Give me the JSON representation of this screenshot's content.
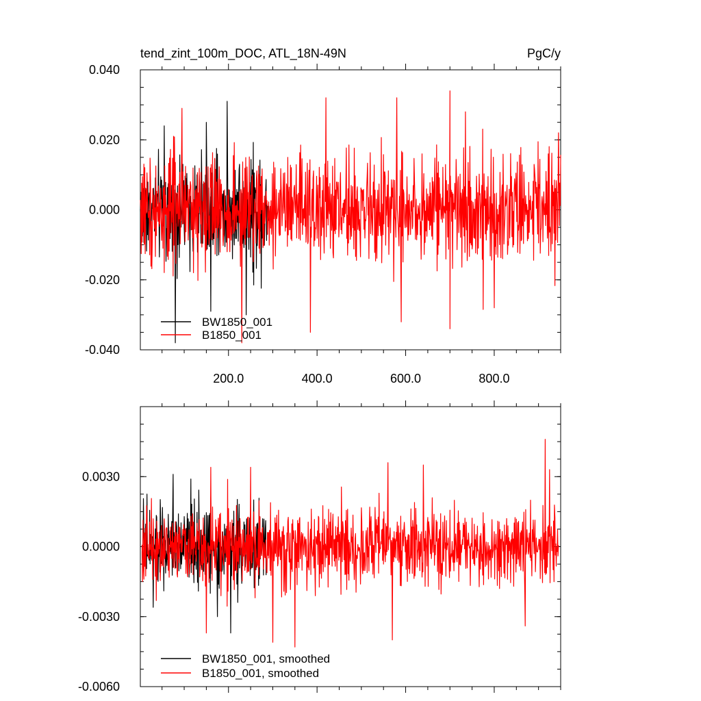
{
  "chart_data": [
    {
      "type": "line",
      "title": "tend_zint_100m_DOC, ATL_18N-49N",
      "units": "PgC/y",
      "xlabel": "",
      "ylabel": "",
      "xlim": [
        1,
        950
      ],
      "ylim": [
        -0.04,
        0.04
      ],
      "x_ticks": [
        200,
        400,
        600,
        800
      ],
      "x_tick_labels": [
        "200.0",
        "400.0",
        "600.0",
        "800.0"
      ],
      "y_ticks": [
        0.04,
        0.02,
        0.0,
        -0.02,
        -0.04
      ],
      "y_tick_labels": [
        "0.040",
        "0.020",
        "0.000",
        "-0.020",
        "-0.040"
      ],
      "grid": false,
      "legend_position": "bottom-left",
      "series": [
        {
          "name": "BW1850_001",
          "color": "#000000",
          "x_range": [
            1,
            290
          ],
          "amplitude": 0.012,
          "mean": 0.0,
          "spikes": [
            {
              "x": 80,
              "y": -0.038
            },
            {
              "x": 150,
              "y": 0.025
            },
            {
              "x": 160,
              "y": -0.029
            },
            {
              "x": 197,
              "y": 0.031
            },
            {
              "x": 225,
              "y": 0.013
            },
            {
              "x": 240,
              "y": -0.03
            },
            {
              "x": 55,
              "y": 0.024
            }
          ]
        },
        {
          "name": "B1850_001",
          "color": "#ff0000",
          "x_range": [
            1,
            950
          ],
          "amplitude": 0.013,
          "mean": 0.0,
          "spikes": [
            {
              "x": 95,
              "y": 0.029
            },
            {
              "x": 230,
              "y": -0.038
            },
            {
              "x": 385,
              "y": -0.035
            },
            {
              "x": 420,
              "y": 0.032
            },
            {
              "x": 580,
              "y": 0.032
            },
            {
              "x": 590,
              "y": -0.032
            },
            {
              "x": 700,
              "y": 0.034
            },
            {
              "x": 700,
              "y": -0.034
            },
            {
              "x": 735,
              "y": 0.028
            },
            {
              "x": 800,
              "y": -0.028
            },
            {
              "x": 945,
              "y": 0.022
            }
          ]
        }
      ]
    },
    {
      "type": "line",
      "title": "",
      "xlabel": "",
      "ylabel": "",
      "xlim": [
        1,
        950
      ],
      "ylim": [
        -0.006,
        0.006
      ],
      "x_ticks": [
        200,
        400,
        600,
        800
      ],
      "x_tick_labels": [],
      "y_ticks": [
        0.003,
        0.0,
        -0.003,
        -0.006
      ],
      "y_tick_labels": [
        "0.0030",
        "0.0000",
        "-0.0030",
        "-0.0060"
      ],
      "grid": false,
      "legend_position": "bottom-left",
      "series": [
        {
          "name": "BW1850_001, smoothed",
          "color": "#000000",
          "x_range": [
            5,
            285
          ],
          "amplitude": 0.0014,
          "mean": 0.0,
          "spikes": [
            {
              "x": 75,
              "y": 0.0031
            },
            {
              "x": 115,
              "y": 0.0029
            },
            {
              "x": 30,
              "y": -0.0026
            },
            {
              "x": 205,
              "y": -0.0037
            },
            {
              "x": 175,
              "y": -0.003
            }
          ]
        },
        {
          "name": "B1850_001, smoothed",
          "color": "#ff0000",
          "x_range": [
            5,
            945
          ],
          "amplitude": 0.0014,
          "mean": 0.0,
          "spikes": [
            {
              "x": 150,
              "y": -0.0037
            },
            {
              "x": 160,
              "y": 0.0034
            },
            {
              "x": 250,
              "y": 0.0034
            },
            {
              "x": 300,
              "y": -0.0041
            },
            {
              "x": 350,
              "y": -0.0043
            },
            {
              "x": 560,
              "y": 0.0036
            },
            {
              "x": 570,
              "y": -0.004
            },
            {
              "x": 640,
              "y": 0.0035
            },
            {
              "x": 870,
              "y": -0.0034
            },
            {
              "x": 915,
              "y": 0.0046
            },
            {
              "x": 925,
              "y": 0.0033
            }
          ]
        }
      ]
    }
  ]
}
